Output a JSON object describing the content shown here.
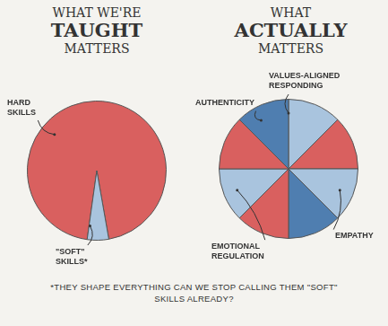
{
  "chart_data": [
    {
      "type": "pie",
      "title": [
        "WHAT WE'RE",
        "TAUGHT",
        "MATTERS"
      ],
      "categories": [
        "HARD SKILLS",
        "\"SOFT\" SKILLS*"
      ],
      "values": [
        95,
        5
      ],
      "colors": [
        "#d9605f",
        "#a9c4de"
      ]
    },
    {
      "type": "pie",
      "title": [
        "WHAT",
        "ACTUALLY",
        "MATTERS"
      ],
      "categories": [
        "VALUES-ALIGNED RESPONDING",
        null,
        "EMPATHY",
        null,
        null,
        "EMOTIONAL REGULATION",
        null,
        "AUTHENTICITY"
      ],
      "values": [
        12.5,
        12.5,
        12.5,
        12.5,
        12.5,
        12.5,
        12.5,
        12.5
      ],
      "colors": [
        "#a9c4de",
        "#d9605f",
        "#a9c4de",
        "#4f7eb0",
        "#d9605f",
        "#a9c4de",
        "#d9605f",
        "#4f7eb0"
      ]
    }
  ],
  "footnote": "*THEY SHAPE EVERYTHING CAN WE STOP CALLING THEM \"SOFT\" SKILLS ALREADY?"
}
